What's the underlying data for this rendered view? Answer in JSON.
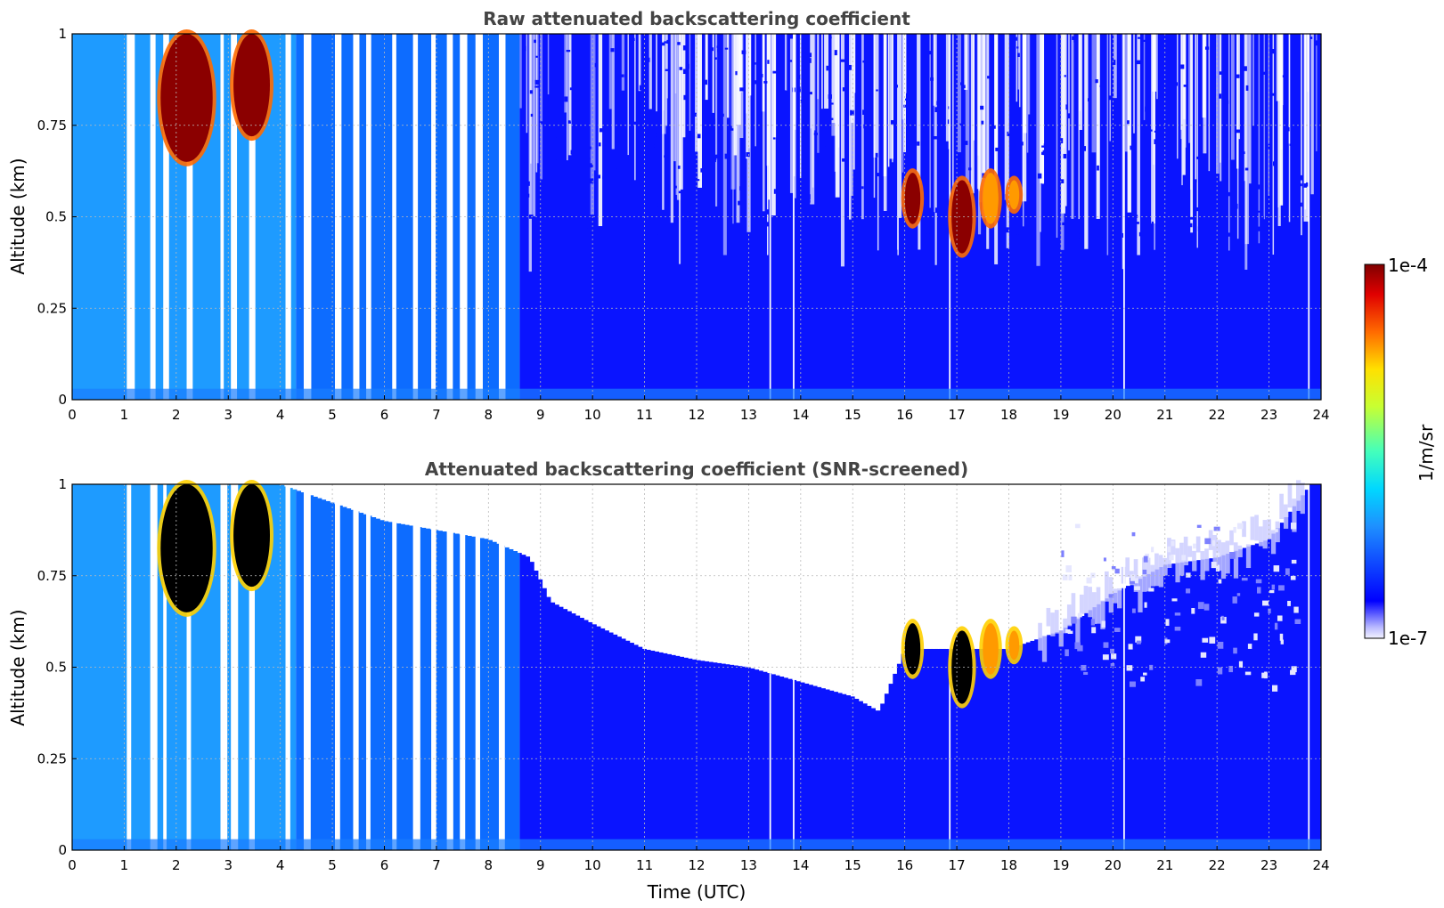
{
  "chart_data": [
    {
      "type": "heatmap",
      "title": "Raw attenuated backscattering coefficient",
      "xlabel": "",
      "ylabel": "Altitude (km)",
      "xlim": [
        0,
        24
      ],
      "ylim": [
        0,
        1
      ],
      "xticks": [
        "0",
        "1",
        "2",
        "3",
        "4",
        "5",
        "6",
        "7",
        "8",
        "9",
        "10",
        "11",
        "12",
        "13",
        "14",
        "15",
        "16",
        "17",
        "18",
        "19",
        "20",
        "21",
        "22",
        "23",
        "24"
      ],
      "yticks": [
        "0",
        "0.25",
        "0.5",
        "0.75",
        "1"
      ],
      "grid": true,
      "colorscale": "jet",
      "screened": false,
      "cloud_features": [
        {
          "t": [
            1.7,
            2.7
          ],
          "alt": [
            0.65,
            1.0
          ],
          "level": "high"
        },
        {
          "t": [
            3.1,
            3.8
          ],
          "alt": [
            0.72,
            1.0
          ],
          "level": "high"
        },
        {
          "t": [
            16.0,
            16.3
          ],
          "alt": [
            0.48,
            0.62
          ],
          "level": "high"
        },
        {
          "t": [
            16.9,
            17.3
          ],
          "alt": [
            0.4,
            0.6
          ],
          "level": "high"
        },
        {
          "t": [
            17.5,
            17.8
          ],
          "alt": [
            0.48,
            0.62
          ],
          "level": "medium"
        },
        {
          "t": [
            18.0,
            18.2
          ],
          "alt": [
            0.52,
            0.6
          ],
          "level": "medium"
        }
      ]
    },
    {
      "type": "heatmap",
      "title": "Attenuated backscattering coefficient (SNR-screened)",
      "xlabel": "Time (UTC)",
      "ylabel": "Altitude (km)",
      "xlim": [
        0,
        24
      ],
      "ylim": [
        0,
        1
      ],
      "xticks": [
        "0",
        "1",
        "2",
        "3",
        "4",
        "5",
        "6",
        "7",
        "8",
        "9",
        "10",
        "11",
        "12",
        "13",
        "14",
        "15",
        "16",
        "17",
        "18",
        "19",
        "20",
        "21",
        "22",
        "23",
        "24"
      ],
      "yticks": [
        "0",
        "0.25",
        "0.5",
        "0.75",
        "1"
      ],
      "grid": true,
      "colorscale": "jet",
      "screened": true,
      "cloud_features": [
        {
          "t": [
            1.7,
            2.7
          ],
          "alt": [
            0.65,
            1.0
          ],
          "level": "saturated"
        },
        {
          "t": [
            3.1,
            3.8
          ],
          "alt": [
            0.72,
            1.0
          ],
          "level": "saturated"
        },
        {
          "t": [
            16.0,
            16.3
          ],
          "alt": [
            0.48,
            0.62
          ],
          "level": "saturated"
        },
        {
          "t": [
            16.9,
            17.3
          ],
          "alt": [
            0.4,
            0.6
          ],
          "level": "saturated"
        },
        {
          "t": [
            17.5,
            17.8
          ],
          "alt": [
            0.48,
            0.62
          ],
          "level": "medium"
        },
        {
          "t": [
            18.0,
            18.2
          ],
          "alt": [
            0.52,
            0.6
          ],
          "level": "medium"
        }
      ],
      "screened_top_km": [
        [
          0,
          1.0
        ],
        [
          4,
          1.0
        ],
        [
          6,
          0.9
        ],
        [
          8,
          0.85
        ],
        [
          8.8,
          0.8
        ],
        [
          9.2,
          0.68
        ],
        [
          10,
          0.62
        ],
        [
          11,
          0.55
        ],
        [
          12,
          0.52
        ],
        [
          13,
          0.5
        ],
        [
          14,
          0.46
        ],
        [
          15,
          0.42
        ],
        [
          15.5,
          0.38
        ],
        [
          16,
          0.55
        ],
        [
          17,
          0.55
        ],
        [
          18,
          0.55
        ],
        [
          19,
          0.6
        ],
        [
          20,
          0.7
        ],
        [
          21,
          0.78
        ],
        [
          22,
          0.8
        ],
        [
          23,
          0.85
        ],
        [
          23.8,
          1.0
        ],
        [
          24,
          1.0
        ]
      ]
    }
  ],
  "colorbar": {
    "max_label": "1e-4",
    "min_label": "1e-7",
    "units": "1/m/sr"
  }
}
